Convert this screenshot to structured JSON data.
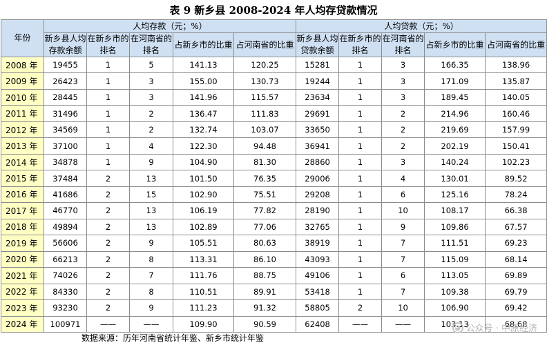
{
  "title": "表 9  新乡县 2008-2024 年人均存贷款情况",
  "headers": {
    "year": "年份",
    "deposit_group": "人均存款（元；%）",
    "loan_group": "人均贷款（元；%）",
    "deposit_cols": [
      "新乡县人均存款余额",
      "在新乡市的排名",
      "在河南省的排名",
      "占新乡市的比重",
      "占河南省的比重"
    ],
    "loan_cols": [
      "新乡县人均贷款余额",
      "在新乡市的排名",
      "在河南省的排名",
      "占新乡市的比重",
      "占河南省的比重"
    ]
  },
  "rows": [
    [
      "2008 年",
      "19455",
      "1",
      "5",
      "141.13",
      "120.25",
      "15281",
      "1",
      "3",
      "166.35",
      "138.96"
    ],
    [
      "2009 年",
      "26423",
      "1",
      "3",
      "155.00",
      "130.73",
      "19244",
      "1",
      "3",
      "171.09",
      "135.87"
    ],
    [
      "2010 年",
      "28445",
      "1",
      "3",
      "141.96",
      "115.57",
      "23634",
      "1",
      "3",
      "189.45",
      "140.05"
    ],
    [
      "2011 年",
      "31496",
      "1",
      "2",
      "136.47",
      "111.83",
      "29691",
      "1",
      "2",
      "214.96",
      "160.46"
    ],
    [
      "2012 年",
      "34569",
      "1",
      "2",
      "132.74",
      "103.07",
      "33650",
      "1",
      "2",
      "219.69",
      "157.99"
    ],
    [
      "2013 年",
      "37100",
      "1",
      "4",
      "122.30",
      "94.48",
      "36941",
      "1",
      "2",
      "202.19",
      "150.41"
    ],
    [
      "2014 年",
      "34878",
      "1",
      "9",
      "104.90",
      "81.30",
      "28860",
      "1",
      "3",
      "140.24",
      "102.23"
    ],
    [
      "2015 年",
      "37484",
      "2",
      "13",
      "101.50",
      "76.35",
      "29006",
      "1",
      "4",
      "130.01",
      "89.52"
    ],
    [
      "2016 年",
      "41686",
      "2",
      "15",
      "102.90",
      "75.51",
      "29208",
      "1",
      "6",
      "125.16",
      "78.24"
    ],
    [
      "2017 年",
      "46770",
      "2",
      "13",
      "106.19",
      "77.82",
      "28190",
      "1",
      "10",
      "108.17",
      "66.38"
    ],
    [
      "2018 年",
      "49894",
      "2",
      "13",
      "102.89",
      "77.06",
      "32765",
      "1",
      "9",
      "109.86",
      "67.57"
    ],
    [
      "2019 年",
      "56606",
      "2",
      "9",
      "105.51",
      "80.63",
      "38919",
      "1",
      "7",
      "111.51",
      "69.23"
    ],
    [
      "2020 年",
      "66213",
      "2",
      "8",
      "113.31",
      "86.10",
      "43093",
      "1",
      "7",
      "115.09",
      "68.14"
    ],
    [
      "2021 年",
      "74026",
      "2",
      "7",
      "111.76",
      "88.75",
      "49106",
      "1",
      "6",
      "113.05",
      "69.89"
    ],
    [
      "2022 年",
      "84330",
      "2",
      "8",
      "110.51",
      "89.91",
      "53418",
      "1",
      "7",
      "109.38",
      "69.79"
    ],
    [
      "2023 年",
      "93230",
      "2",
      "9",
      "111.23",
      "91.32",
      "58805",
      "2",
      "10",
      "106.90",
      "69.42"
    ],
    [
      "2024 年",
      "100971",
      "——",
      "——",
      "109.90",
      "90.59",
      "62408",
      "——",
      "——",
      "103.13",
      "68.68"
    ]
  ],
  "source": "数据来源：历年河南省统计年鉴、新乡市统计年鉴",
  "watermark": "公众号 · 中原经济",
  "colors": {
    "header_bg": "#cfe0f3",
    "year_bg": "#ffffc4",
    "border": "#8c8c8c"
  }
}
